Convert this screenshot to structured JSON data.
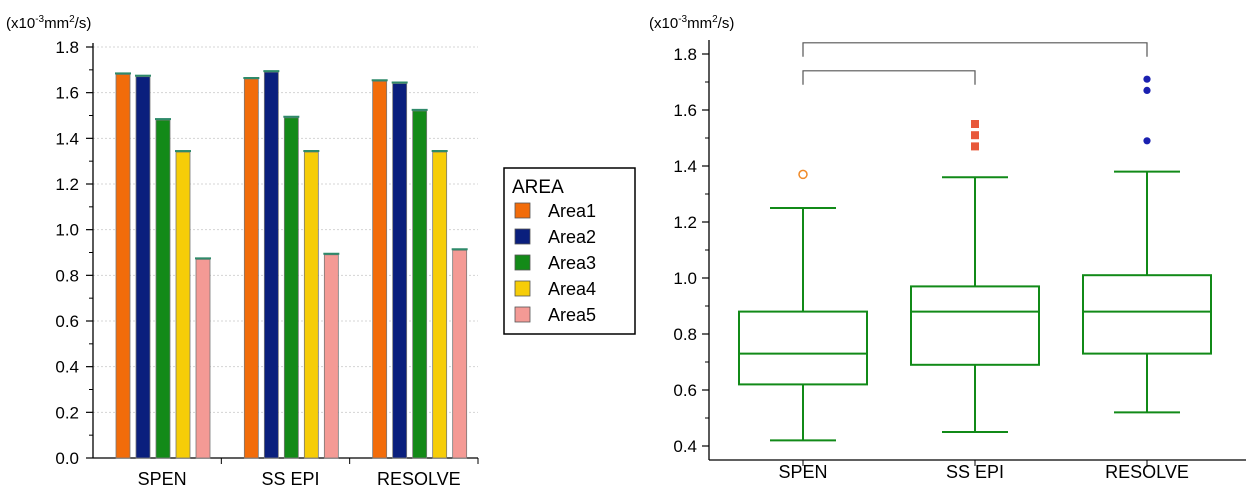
{
  "chart_data": [
    {
      "type": "bar",
      "unit_label": {
        "prefix": "(x10",
        "exp": "-3",
        "mid": "mm",
        "exp2": "2",
        "suffix": "/s)"
      },
      "categories": [
        "SPEN",
        "SS EPI",
        "RESOLVE"
      ],
      "series": [
        {
          "name": "Area1",
          "color": "#f26c0a",
          "values": [
            1.68,
            1.66,
            1.65
          ]
        },
        {
          "name": "Area2",
          "color": "#0a1f7d",
          "values": [
            1.67,
            1.69,
            1.64
          ]
        },
        {
          "name": "Area3",
          "color": "#138a18",
          "values": [
            1.48,
            1.49,
            1.52
          ]
        },
        {
          "name": "Area4",
          "color": "#f6cd08",
          "values": [
            1.34,
            1.34,
            1.34
          ]
        },
        {
          "name": "Area5",
          "color": "#f49a95",
          "values": [
            0.87,
            0.89,
            0.91
          ]
        }
      ],
      "ylim": [
        0.0,
        1.8
      ],
      "yticks": [
        "0.0",
        "0.2",
        "0.4",
        "0.6",
        "0.8",
        "1.0",
        "1.2",
        "1.4",
        "1.6",
        "1.8"
      ],
      "legend": {
        "title": "AREA",
        "position": "right"
      },
      "grid": true
    },
    {
      "type": "box",
      "unit_label": {
        "prefix": "(x10",
        "exp": "-3",
        "mid": "mm",
        "exp2": "2",
        "suffix": "/s)"
      },
      "categories": [
        "SPEN",
        "SS EPI",
        "RESOLVE"
      ],
      "box_color": "#118a18",
      "boxes": [
        {
          "name": "SPEN",
          "whisker_low": 0.42,
          "q1": 0.62,
          "median": 0.73,
          "q3": 0.88,
          "whisker_high": 1.25,
          "outliers": [
            1.37
          ],
          "outlier_marker": "circle-open",
          "outlier_color": "#f08a28"
        },
        {
          "name": "SS EPI",
          "whisker_low": 0.45,
          "q1": 0.69,
          "median": 0.88,
          "q3": 0.97,
          "whisker_high": 1.36,
          "outliers": [
            1.47,
            1.51,
            1.55
          ],
          "outlier_marker": "square",
          "outlier_color": "#e8583a"
        },
        {
          "name": "RESOLVE",
          "whisker_low": 0.52,
          "q1": 0.73,
          "median": 0.88,
          "q3": 1.01,
          "whisker_high": 1.38,
          "outliers": [
            1.49,
            1.67,
            1.71
          ],
          "outlier_marker": "circle",
          "outlier_color": "#1a20b0"
        }
      ],
      "ylim": [
        0.35,
        1.85
      ],
      "yticks": [
        "0.4",
        "0.6",
        "0.8",
        "1.0",
        "1.2",
        "1.4",
        "1.6",
        "1.8"
      ],
      "brackets": [
        {
          "from": "SPEN",
          "to": "RESOLVE",
          "level": 1.84
        },
        {
          "from": "SPEN",
          "to": "SS EPI",
          "level": 1.74
        }
      ]
    }
  ]
}
